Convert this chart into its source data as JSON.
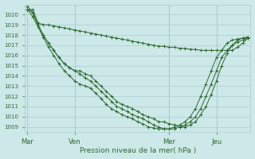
{
  "title": "",
  "xlabel": "Pression niveau de la mer( hPa )",
  "bg_color": "#cce8e8",
  "grid_color": "#aacccc",
  "line_color": "#2d6b2d",
  "ylim": [
    1008.5,
    1021.0
  ],
  "yticks": [
    1009,
    1010,
    1011,
    1012,
    1013,
    1014,
    1015,
    1016,
    1017,
    1018,
    1019,
    1020
  ],
  "xtick_labels": [
    "Mar",
    "Ven",
    "Mer",
    "Jeu"
  ],
  "xtick_positions": [
    0,
    9,
    27,
    36
  ],
  "total_points": 43,
  "series1": [
    1020.5,
    1020.5,
    1019.2,
    1019.0,
    1019.0,
    1018.9,
    1018.8,
    1018.7,
    1018.6,
    1018.5,
    1018.4,
    1018.3,
    1018.2,
    1018.1,
    1018.0,
    1017.9,
    1017.8,
    1017.7,
    1017.6,
    1017.5,
    1017.4,
    1017.3,
    1017.2,
    1017.1,
    1017.0,
    1016.9,
    1016.9,
    1016.8,
    1016.8,
    1016.7,
    1016.7,
    1016.6,
    1016.6,
    1016.5,
    1016.5,
    1016.5,
    1016.5,
    1016.5,
    1016.5,
    1016.5,
    1016.8,
    1017.2,
    1017.7
  ],
  "series2": [
    1020.5,
    1020.2,
    1019.0,
    1018.0,
    1017.2,
    1016.5,
    1015.8,
    1015.2,
    1014.8,
    1014.5,
    1014.5,
    1014.2,
    1014.0,
    1013.5,
    1013.0,
    1012.5,
    1012.0,
    1011.5,
    1011.2,
    1011.0,
    1010.8,
    1010.5,
    1010.2,
    1010.0,
    1009.8,
    1009.5,
    1009.5,
    1009.3,
    1009.2,
    1009.0,
    1009.0,
    1009.2,
    1009.5,
    1010.2,
    1011.0,
    1012.2,
    1013.5,
    1015.0,
    1016.2,
    1017.0,
    1017.5,
    1017.7,
    1017.8
  ],
  "series3": [
    1020.5,
    1019.8,
    1018.8,
    1017.8,
    1016.8,
    1016.0,
    1015.2,
    1014.5,
    1014.0,
    1013.5,
    1013.2,
    1013.0,
    1012.8,
    1012.3,
    1011.8,
    1011.2,
    1010.8,
    1010.5,
    1010.2,
    1010.0,
    1009.8,
    1009.5,
    1009.3,
    1009.0,
    1008.9,
    1008.8,
    1008.8,
    1008.8,
    1008.8,
    1009.0,
    1009.2,
    1009.5,
    1010.0,
    1010.8,
    1012.0,
    1013.2,
    1014.5,
    1015.8,
    1016.5,
    1017.0,
    1017.3,
    1017.5,
    1017.7
  ],
  "series4": [
    1020.8,
    1020.2,
    1019.0,
    1018.0,
    1017.2,
    1016.5,
    1015.8,
    1015.2,
    1014.8,
    1014.5,
    1014.2,
    1013.8,
    1013.5,
    1013.0,
    1012.5,
    1012.0,
    1011.5,
    1011.0,
    1010.8,
    1010.5,
    1010.2,
    1010.0,
    1009.8,
    1009.5,
    1009.2,
    1009.0,
    1008.8,
    1008.8,
    1009.0,
    1009.2,
    1009.5,
    1010.0,
    1010.8,
    1012.0,
    1013.2,
    1014.5,
    1015.8,
    1016.5,
    1017.2,
    1017.5,
    1017.6,
    1017.7,
    1017.8
  ]
}
